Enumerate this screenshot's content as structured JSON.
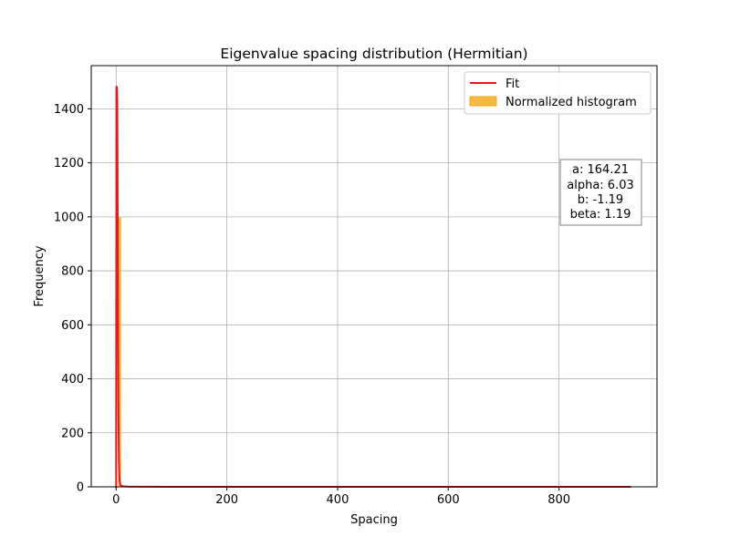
{
  "chart_data": {
    "type": "line",
    "title": "Eigenvalue spacing distribution (Hermitian)",
    "xlabel": "Spacing",
    "ylabel": "Frequency",
    "xlim": [
      -45,
      977
    ],
    "ylim": [
      0,
      1560
    ],
    "xticks": [
      0,
      200,
      400,
      600,
      800
    ],
    "yticks": [
      0,
      200,
      400,
      600,
      800,
      1000,
      1200,
      1400
    ],
    "grid": true,
    "legend_position": "top-right",
    "series": [
      {
        "name": "Fit",
        "kind": "line",
        "color": "#e41a1c",
        "x": [
          -2,
          0,
          0.5,
          1,
          1.5,
          2,
          2.5,
          3,
          3.5,
          4,
          5,
          6,
          7,
          8,
          10,
          12,
          20,
          50,
          100,
          200,
          400,
          600,
          800,
          930
        ],
        "y": [
          0,
          0,
          1480,
          1482,
          1475,
          1440,
          1200,
          880,
          560,
          300,
          90,
          30,
          12,
          6,
          3,
          2,
          1,
          0.5,
          0.2,
          0.1,
          0.05,
          0.03,
          0.02,
          0.01
        ]
      },
      {
        "name": "Normalized histogram",
        "kind": "bar",
        "color": "#f5a614",
        "bins": [
          {
            "x0": 0,
            "x1": 3.5,
            "value": 0
          },
          {
            "x0": 3.5,
            "x1": 9,
            "value": 1000
          }
        ]
      }
    ],
    "annotation": {
      "lines": [
        "a: 164.21",
        "alpha: 6.03",
        "b: -1.19",
        "beta: 1.19"
      ]
    }
  }
}
